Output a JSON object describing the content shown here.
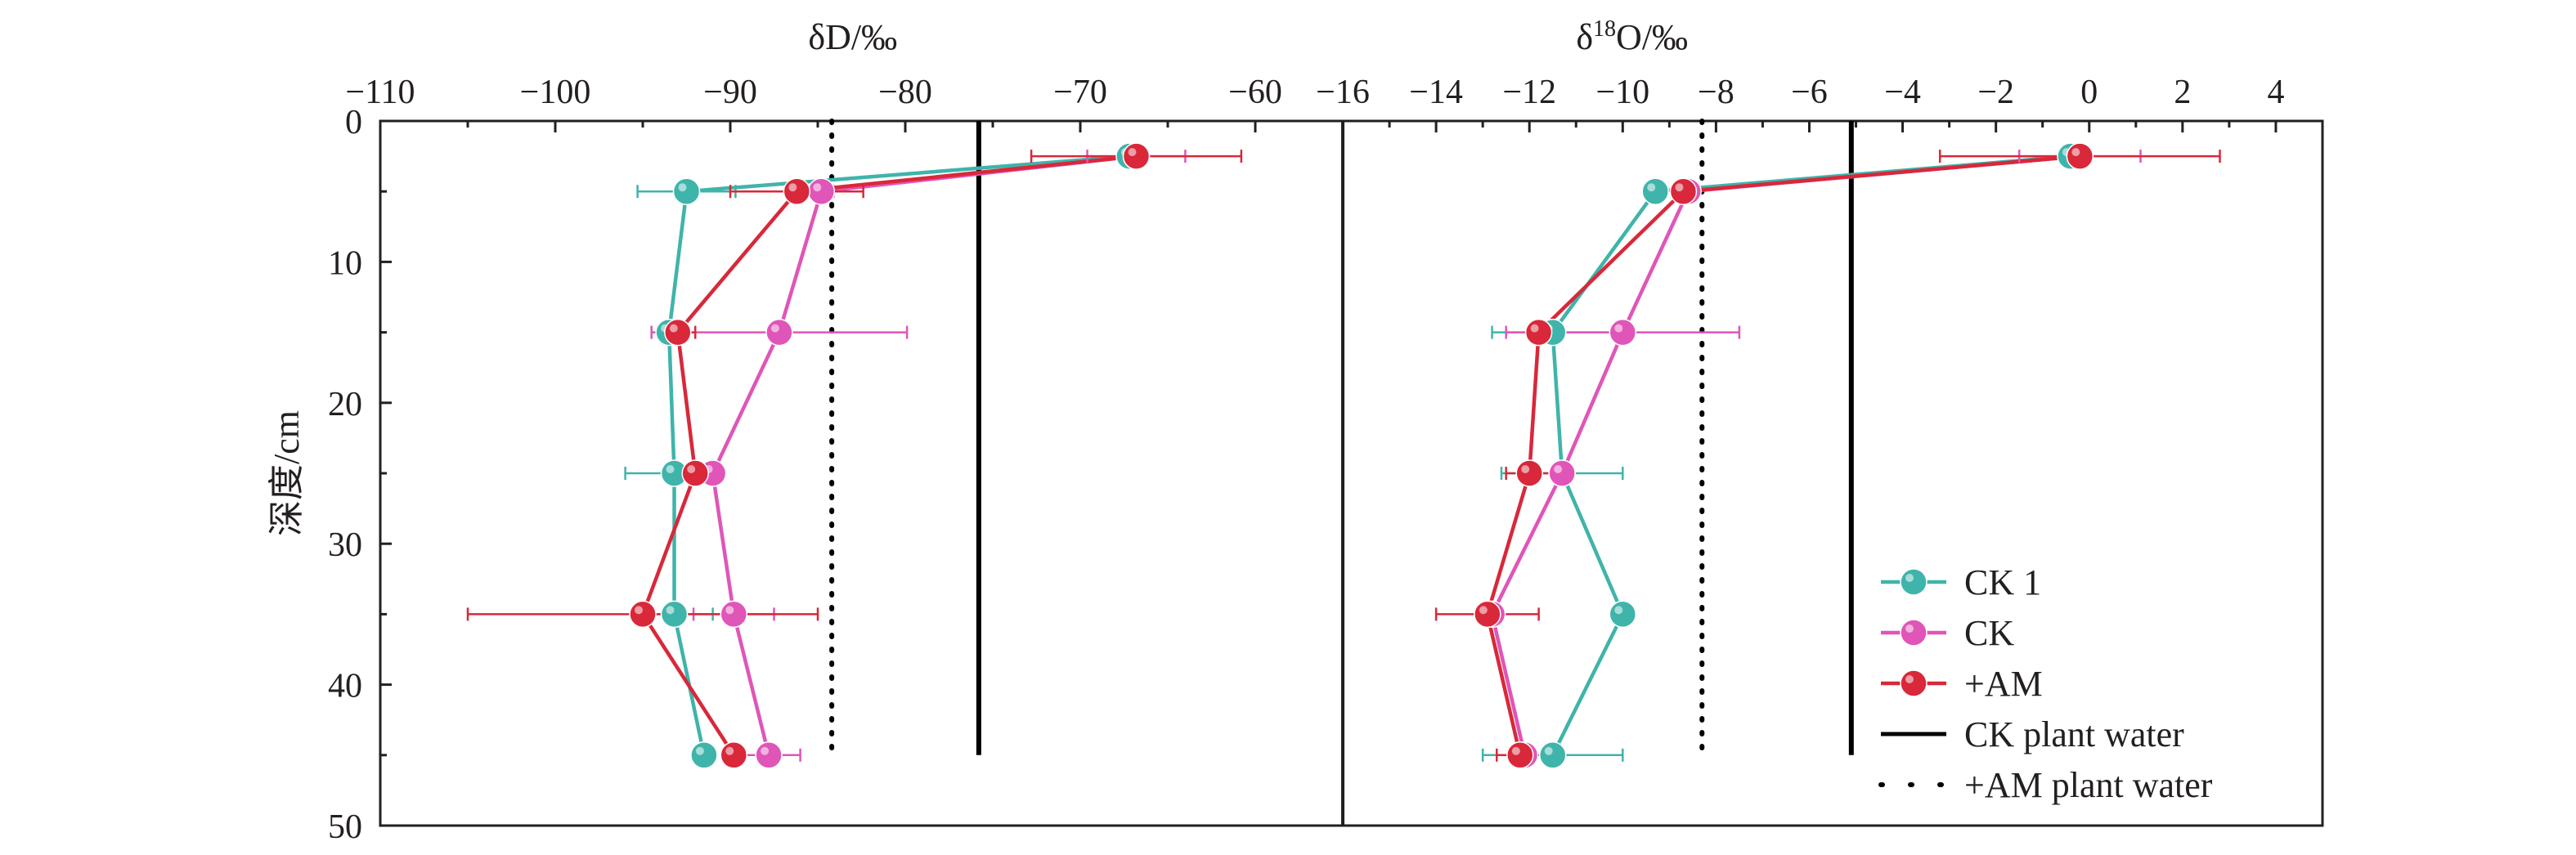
{
  "chart_data": [
    {
      "panel": "left",
      "type": "line",
      "xlabel": "δD/‰",
      "ylabel": "深度/cm",
      "xlim": [
        -110,
        -55
      ],
      "ylim": [
        0,
        50
      ],
      "xticks": [
        "−110",
        "−100",
        "−90",
        "−80",
        "−70",
        "−60"
      ],
      "yticks": [
        "0",
        "10",
        "20",
        "30",
        "40",
        "50"
      ],
      "x_axis_position": "top",
      "y_inverted": true,
      "grid": false,
      "series": [
        {
          "name": "CK 1",
          "color": "#3fb4aa",
          "marker": "circle",
          "points": [
            {
              "depth": 2.5,
              "x": -67.2,
              "err": 0
            },
            {
              "depth": 5,
              "x": -92.5,
              "err": 2.8
            },
            {
              "depth": 15,
              "x": -93.5,
              "err": 1.0
            },
            {
              "depth": 25,
              "x": -93.2,
              "err": 2.8
            },
            {
              "depth": 35,
              "x": -93.2,
              "err": 2.2
            },
            {
              "depth": 45,
              "x": -91.5,
              "err": 0
            }
          ]
        },
        {
          "name": "CK",
          "color": "#e055b8",
          "marker": "circle",
          "points": [
            {
              "depth": 2.5,
              "x": -66.8,
              "err": 2.8
            },
            {
              "depth": 5,
              "x": -84.8,
              "err": 0.7
            },
            {
              "depth": 15,
              "x": -87.2,
              "err": 7.3
            },
            {
              "depth": 25,
              "x": -91.0,
              "err": 0.6
            },
            {
              "depth": 35,
              "x": -89.8,
              "err": 2.3
            },
            {
              "depth": 45,
              "x": -87.8,
              "err": 1.8
            }
          ]
        },
        {
          "name": "+AM",
          "color": "#d8283a",
          "marker": "circle",
          "points": [
            {
              "depth": 2.5,
              "x": -66.8,
              "err": 6.0
            },
            {
              "depth": 5,
              "x": -86.2,
              "err": 3.8
            },
            {
              "depth": 15,
              "x": -93.0,
              "err": 1.0
            },
            {
              "depth": 25,
              "x": -92.0,
              "err": 1.0
            },
            {
              "depth": 35,
              "x": -95.0,
              "err": 10.0
            },
            {
              "depth": 45,
              "x": -89.8,
              "err": 0.6
            }
          ]
        }
      ],
      "reference_lines": [
        {
          "name": "CK plant water",
          "x": -75.8,
          "style": "solid"
        },
        {
          "name": "+AM plant water",
          "x": -84.2,
          "style": "dotted"
        }
      ]
    },
    {
      "panel": "right",
      "type": "line",
      "xlabel": "δ18O/‰",
      "xlim": [
        -16,
        5
      ],
      "ylim": [
        0,
        50
      ],
      "xticks": [
        "−16",
        "−14",
        "−12",
        "−10",
        "−8",
        "−6",
        "−4",
        "−2",
        "0",
        "2",
        "4"
      ],
      "x_axis_position": "top",
      "y_inverted": true,
      "grid": false,
      "series": [
        {
          "name": "CK 1",
          "color": "#3fb4aa",
          "marker": "circle",
          "points": [
            {
              "depth": 2.5,
              "x": -0.4,
              "err": 0
            },
            {
              "depth": 5,
              "x": -9.3,
              "err": 0
            },
            {
              "depth": 15,
              "x": -11.5,
              "err": 1.3
            },
            {
              "depth": 25,
              "x": -11.3,
              "err": 1.3
            },
            {
              "depth": 35,
              "x": -10.0,
              "err": 0
            },
            {
              "depth": 45,
              "x": -11.5,
              "err": 1.5
            }
          ]
        },
        {
          "name": "CK",
          "color": "#e055b8",
          "marker": "circle",
          "points": [
            {
              "depth": 2.5,
              "x": -0.2,
              "err": 1.3
            },
            {
              "depth": 5,
              "x": -8.6,
              "err": 0
            },
            {
              "depth": 15,
              "x": -10.0,
              "err": 2.5
            },
            {
              "depth": 25,
              "x": -11.3,
              "err": 0
            },
            {
              "depth": 35,
              "x": -12.8,
              "err": 0
            },
            {
              "depth": 45,
              "x": -12.1,
              "err": 0
            }
          ]
        },
        {
          "name": "+AM",
          "color": "#d8283a",
          "marker": "circle",
          "points": [
            {
              "depth": 2.5,
              "x": -0.2,
              "err": 3.0
            },
            {
              "depth": 5,
              "x": -8.7,
              "err": 0
            },
            {
              "depth": 15,
              "x": -11.8,
              "err": 0
            },
            {
              "depth": 25,
              "x": -12.0,
              "err": 0.5
            },
            {
              "depth": 35,
              "x": -12.9,
              "err": 1.1
            },
            {
              "depth": 45,
              "x": -12.2,
              "err": 0.5
            }
          ]
        }
      ],
      "reference_lines": [
        {
          "name": "CK plant water",
          "x": -5.1,
          "style": "solid"
        },
        {
          "name": "+AM plant water",
          "x": -8.3,
          "style": "dotted"
        }
      ]
    }
  ],
  "legend": {
    "placement": "bottom-right",
    "entries": [
      {
        "label": "CK 1",
        "kind": "marker-line",
        "color": "#3fb4aa"
      },
      {
        "label": "CK",
        "kind": "marker-line",
        "color": "#e055b8"
      },
      {
        "label": "+AM",
        "kind": "marker-line",
        "color": "#d8283a"
      },
      {
        "label": "CK plant water",
        "kind": "solid-line",
        "color": "#000000"
      },
      {
        "label": "+AM plant water",
        "kind": "dotted-line",
        "color": "#000000"
      }
    ]
  }
}
